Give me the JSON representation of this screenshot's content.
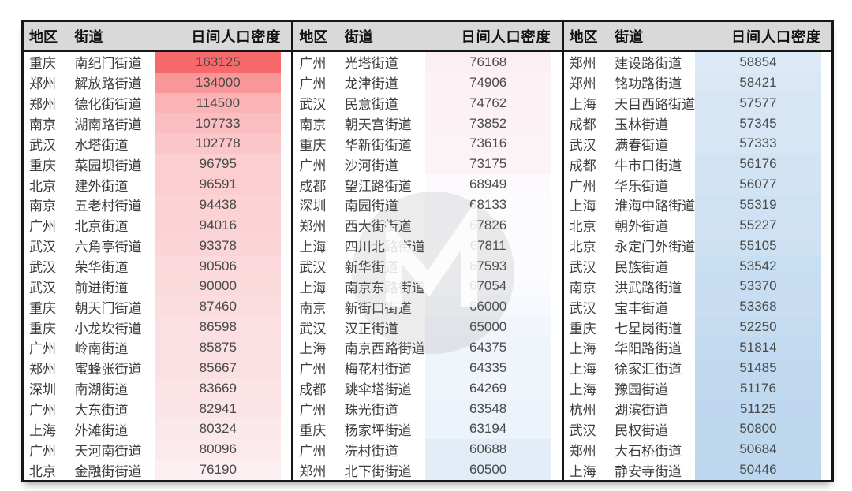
{
  "chart_data": {
    "type": "table",
    "title": "日间人口密度排名表（按街道）",
    "columns": [
      "地区",
      "街道",
      "日间人口密度"
    ],
    "legend_position": "none",
    "color_scale": {
      "min_value": 50446,
      "mid_value": 67593,
      "max_value": 163125,
      "min_color": "#BDD7EE",
      "mid_color": "#FCFCFF",
      "max_color": "#F8696B"
    },
    "groups": [
      [
        {
          "region": "重庆",
          "street": "南纪门街道",
          "density": 163125
        },
        {
          "region": "郑州",
          "street": "解放路街道",
          "density": 134000
        },
        {
          "region": "郑州",
          "street": "德化街街道",
          "density": 114500
        },
        {
          "region": "南京",
          "street": "湖南路街道",
          "density": 107733
        },
        {
          "region": "武汉",
          "street": "水塔街道",
          "density": 102778
        },
        {
          "region": "重庆",
          "street": "菜园坝街道",
          "density": 96795
        },
        {
          "region": "北京",
          "street": "建外街道",
          "density": 96591
        },
        {
          "region": "南京",
          "street": "五老村街道",
          "density": 94438
        },
        {
          "region": "广州",
          "street": "北京街道",
          "density": 94016
        },
        {
          "region": "武汉",
          "street": "六角亭街道",
          "density": 93378
        },
        {
          "region": "武汉",
          "street": "荣华街道",
          "density": 90506
        },
        {
          "region": "武汉",
          "street": "前进街道",
          "density": 90000
        },
        {
          "region": "重庆",
          "street": "朝天门街道",
          "density": 87460
        },
        {
          "region": "重庆",
          "street": "小龙坎街道",
          "density": 86598
        },
        {
          "region": "广州",
          "street": "岭南街道",
          "density": 85875
        },
        {
          "region": "郑州",
          "street": "蜜蜂张街道",
          "density": 85667
        },
        {
          "region": "深圳",
          "street": "南湖街道",
          "density": 83669
        },
        {
          "region": "广州",
          "street": "大东街道",
          "density": 82941
        },
        {
          "region": "上海",
          "street": "外滩街道",
          "density": 80324
        },
        {
          "region": "广州",
          "street": "天河南街道",
          "density": 80096
        },
        {
          "region": "北京",
          "street": "金融街街道",
          "density": 76190
        }
      ],
      [
        {
          "region": "广州",
          "street": "光塔街道",
          "density": 76168
        },
        {
          "region": "广州",
          "street": "龙津街道",
          "density": 74906
        },
        {
          "region": "武汉",
          "street": "民意街道",
          "density": 74762
        },
        {
          "region": "南京",
          "street": "朝天宫街道",
          "density": 73852
        },
        {
          "region": "重庆",
          "street": "华新街街道",
          "density": 73616
        },
        {
          "region": "广州",
          "street": "沙河街道",
          "density": 73175
        },
        {
          "region": "成都",
          "street": "望江路街道",
          "density": 68949
        },
        {
          "region": "深圳",
          "street": "南园街道",
          "density": 68133
        },
        {
          "region": "郑州",
          "street": "西大街街道",
          "density": 67826
        },
        {
          "region": "上海",
          "street": "四川北路街道",
          "density": 67811
        },
        {
          "region": "武汉",
          "street": "新华街道",
          "density": 67593
        },
        {
          "region": "上海",
          "street": "南京东路街道",
          "density": 67054
        },
        {
          "region": "南京",
          "street": "新街口街道",
          "density": 66000
        },
        {
          "region": "武汉",
          "street": "汉正街道",
          "density": 65000
        },
        {
          "region": "上海",
          "street": "南京西路街道",
          "density": 64375
        },
        {
          "region": "广州",
          "street": "梅花村街道",
          "density": 64335
        },
        {
          "region": "成都",
          "street": "跳伞塔街道",
          "density": 64269
        },
        {
          "region": "广州",
          "street": "珠光街道",
          "density": 63548
        },
        {
          "region": "重庆",
          "street": "杨家坪街道",
          "density": 63194
        },
        {
          "region": "广州",
          "street": "冼村街道",
          "density": 60688
        },
        {
          "region": "郑州",
          "street": "北下街街道",
          "density": 60500
        }
      ],
      [
        {
          "region": "郑州",
          "street": "建设路街道",
          "density": 58854
        },
        {
          "region": "郑州",
          "street": "铭功路街道",
          "density": 58421
        },
        {
          "region": "上海",
          "street": "天目西路街道",
          "density": 57577
        },
        {
          "region": "成都",
          "street": "玉林街道",
          "density": 57345
        },
        {
          "region": "武汉",
          "street": "满春街道",
          "density": 57333
        },
        {
          "region": "成都",
          "street": "牛市口街道",
          "density": 56176
        },
        {
          "region": "广州",
          "street": "华乐街道",
          "density": 56077
        },
        {
          "region": "上海",
          "street": "淮海中路街道",
          "density": 55319
        },
        {
          "region": "北京",
          "street": "朝外街道",
          "density": 55227
        },
        {
          "region": "北京",
          "street": "永定门外街道",
          "density": 55105
        },
        {
          "region": "武汉",
          "street": "民族街道",
          "density": 53542
        },
        {
          "region": "南京",
          "street": "洪武路街道",
          "density": 53370
        },
        {
          "region": "武汉",
          "street": "宝丰街道",
          "density": 53368
        },
        {
          "region": "重庆",
          "street": "七星岗街道",
          "density": 52250
        },
        {
          "region": "上海",
          "street": "华阳路街道",
          "density": 51814
        },
        {
          "region": "上海",
          "street": "徐家汇街道",
          "density": 51485
        },
        {
          "region": "上海",
          "street": "豫园街道",
          "density": 51176
        },
        {
          "region": "杭州",
          "street": "湖滨街道",
          "density": 51125
        },
        {
          "region": "武汉",
          "street": "民权街道",
          "density": 50800
        },
        {
          "region": "郑州",
          "street": "大石桥街道",
          "density": 50684
        },
        {
          "region": "上海",
          "street": "静安寺街道",
          "density": 50446
        }
      ]
    ]
  },
  "style": {
    "header_bg": "#D9D9D9",
    "border_color": "#161616",
    "body_text_color": "#3d3d3d"
  },
  "watermark": {
    "shape": "circle-logo"
  }
}
